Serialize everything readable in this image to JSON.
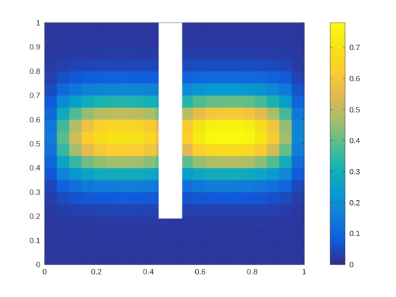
{
  "chart_data": {
    "type": "heatmap",
    "title": "",
    "xlabel": "",
    "ylabel": "",
    "xlim": [
      0,
      1
    ],
    "ylim": [
      0,
      1
    ],
    "colormap": "parula",
    "x_ticks": [
      "0",
      "0.2",
      "0.4",
      "0.6",
      "0.8",
      "1"
    ],
    "y_ticks": [
      "0",
      "0.1",
      "0.2",
      "0.3",
      "0.4",
      "0.5",
      "0.6",
      "0.7",
      "0.8",
      "0.9",
      "1"
    ],
    "colorbar": {
      "range": [
        0,
        0.78
      ],
      "ticks": [
        "0",
        "0.1",
        "0.2",
        "0.3",
        "0.4",
        "0.5",
        "0.6",
        "0.7"
      ]
    },
    "grid_size": [
      21,
      20
    ],
    "mask": {
      "x": [
        0.44,
        0.53
      ],
      "y": [
        0.19,
        1.0
      ]
    },
    "field": {
      "description_free": true,
      "lobes": [
        {
          "cx": 0.3,
          "cy": 0.53,
          "peak": 0.68
        },
        {
          "cx": 0.71,
          "cy": 0.54,
          "peak": 0.77
        }
      ]
    }
  }
}
